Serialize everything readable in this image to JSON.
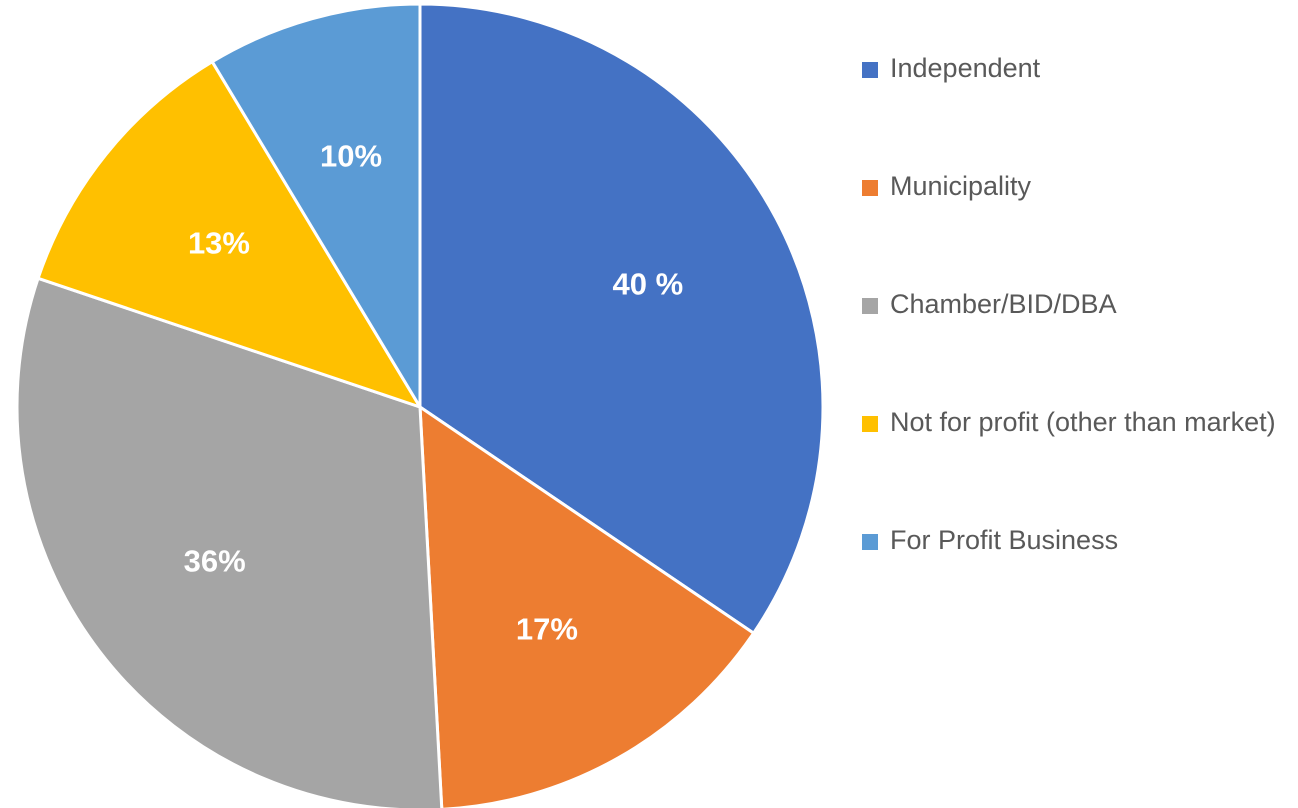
{
  "chart_data": {
    "type": "pie",
    "categories": [
      "Independent",
      "Municipality",
      "Chamber/BID/DBA",
      "Not for profit (other than market)",
      "For Profit Business"
    ],
    "values": [
      40,
      17,
      36,
      13,
      10
    ],
    "value_labels": [
      "40 %",
      "17%",
      "36%",
      "13%",
      "10%"
    ],
    "colors": [
      "#4472c4",
      "#ed7d31",
      "#a5a5a5",
      "#ffc000",
      "#5b9bd5"
    ],
    "legend": "right"
  }
}
